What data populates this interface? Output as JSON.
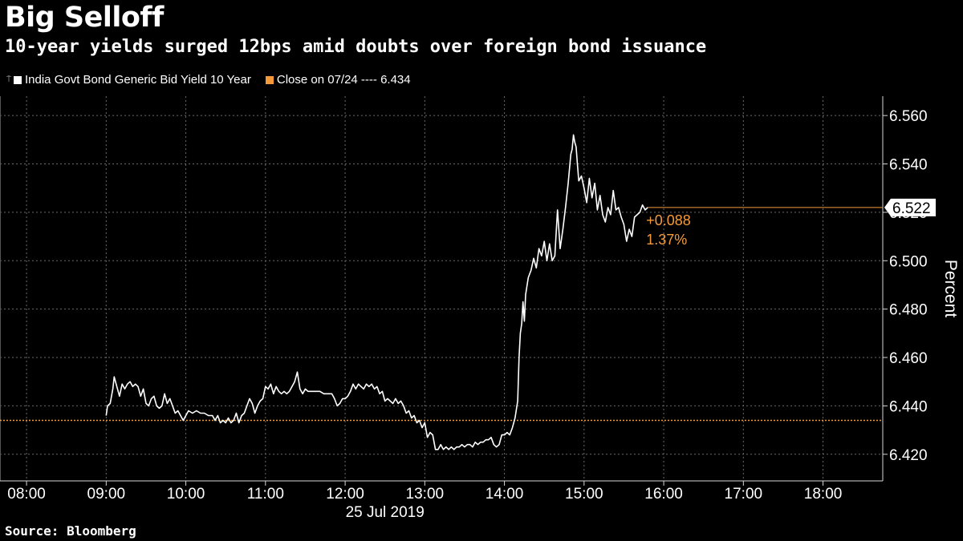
{
  "title": "Big Selloff",
  "subtitle": "10-year yields surged 12bps amid doubts over foreign bond issuance",
  "legend": {
    "series_label": "India Govt Bond Generic Bid Yield 10 Year",
    "close_label": "Close on 07/24 ---- 6.434",
    "series_color": "#ffffff",
    "close_color": "#f59a3a"
  },
  "source": "Source: Bloomberg",
  "chart_data": {
    "type": "line",
    "xlabel": "25 Jul 2019",
    "ylabel": "Percent",
    "x_ticks": [
      "08:00",
      "09:00",
      "10:00",
      "11:00",
      "12:00",
      "13:00",
      "14:00",
      "15:00",
      "16:00",
      "17:00",
      "18:00"
    ],
    "y_ticks": [
      "6.420",
      "6.440",
      "6.460",
      "6.480",
      "6.500",
      "6.520",
      "6.540",
      "6.560"
    ],
    "xlim": [
      "07:40",
      "18:45"
    ],
    "ylim": [
      6.409,
      6.568
    ],
    "grid": true,
    "legend_position": "top-left",
    "reference_line": {
      "label": "Close on 07/24",
      "value": 6.434
    },
    "last_value": "6.522",
    "change": "+0.088",
    "change_pct": "1.37%",
    "series": [
      {
        "name": "India Govt Bond Generic Bid Yield 10 Year",
        "points": [
          [
            "09:00",
            6.436
          ],
          [
            "09:01",
            6.44
          ],
          [
            "09:03",
            6.441
          ],
          [
            "09:05",
            6.447
          ],
          [
            "09:06",
            6.452
          ],
          [
            "09:08",
            6.448
          ],
          [
            "09:10",
            6.444
          ],
          [
            "09:12",
            6.449
          ],
          [
            "09:14",
            6.447
          ],
          [
            "09:16",
            6.449
          ],
          [
            "09:18",
            6.45
          ],
          [
            "09:20",
            6.448
          ],
          [
            "09:22",
            6.449
          ],
          [
            "09:24",
            6.448
          ],
          [
            "09:26",
            6.444
          ],
          [
            "09:28",
            6.447
          ],
          [
            "09:30",
            6.441
          ],
          [
            "09:32",
            6.44
          ],
          [
            "09:34",
            6.443
          ],
          [
            "09:36",
            6.444
          ],
          [
            "09:38",
            6.44
          ],
          [
            "09:40",
            6.439
          ],
          [
            "09:42",
            6.44
          ],
          [
            "09:44",
            6.445
          ],
          [
            "09:46",
            6.441
          ],
          [
            "09:48",
            6.443
          ],
          [
            "09:50",
            6.44
          ],
          [
            "09:52",
            6.437
          ],
          [
            "09:54",
            6.438
          ],
          [
            "09:56",
            6.436
          ],
          [
            "09:58",
            6.434
          ],
          [
            "10:00",
            6.436
          ],
          [
            "10:02",
            6.438
          ],
          [
            "10:05",
            6.437
          ],
          [
            "10:08",
            6.438
          ],
          [
            "10:11",
            6.437
          ],
          [
            "10:14",
            6.437
          ],
          [
            "10:17",
            6.436
          ],
          [
            "10:20",
            6.436
          ],
          [
            "10:22",
            6.434
          ],
          [
            "10:24",
            6.436
          ],
          [
            "10:26",
            6.433
          ],
          [
            "10:28",
            6.434
          ],
          [
            "10:30",
            6.433
          ],
          [
            "10:32",
            6.435
          ],
          [
            "10:34",
            6.433
          ],
          [
            "10:36",
            6.434
          ],
          [
            "10:38",
            6.437
          ],
          [
            "10:40",
            6.433
          ],
          [
            "10:42",
            6.436
          ],
          [
            "10:44",
            6.437
          ],
          [
            "10:46",
            6.44
          ],
          [
            "10:48",
            6.443
          ],
          [
            "10:50",
            6.441
          ],
          [
            "10:52",
            6.437
          ],
          [
            "10:54",
            6.44
          ],
          [
            "10:56",
            6.442
          ],
          [
            "10:58",
            6.443
          ],
          [
            "11:00",
            6.448
          ],
          [
            "11:02",
            6.447
          ],
          [
            "11:04",
            6.449
          ],
          [
            "11:06",
            6.445
          ],
          [
            "11:08",
            6.448
          ],
          [
            "11:10",
            6.446
          ],
          [
            "11:12",
            6.445
          ],
          [
            "11:14",
            6.446
          ],
          [
            "11:16",
            6.445
          ],
          [
            "11:18",
            6.446
          ],
          [
            "11:20",
            6.448
          ],
          [
            "11:22",
            6.45
          ],
          [
            "11:24",
            6.454
          ],
          [
            "11:26",
            6.447
          ],
          [
            "11:28",
            6.445
          ],
          [
            "11:30",
            6.447
          ],
          [
            "11:32",
            6.446
          ],
          [
            "11:35",
            6.446
          ],
          [
            "11:38",
            6.446
          ],
          [
            "11:41",
            6.446
          ],
          [
            "11:44",
            6.445
          ],
          [
            "11:47",
            6.445
          ],
          [
            "11:50",
            6.445
          ],
          [
            "11:52",
            6.443
          ],
          [
            "11:54",
            6.44
          ],
          [
            "11:56",
            6.441
          ],
          [
            "11:58",
            6.443
          ],
          [
            "12:00",
            6.443
          ],
          [
            "12:02",
            6.444
          ],
          [
            "12:04",
            6.446
          ],
          [
            "12:06",
            6.449
          ],
          [
            "12:08",
            6.447
          ],
          [
            "12:10",
            6.449
          ],
          [
            "12:12",
            6.448
          ],
          [
            "12:14",
            6.447
          ],
          [
            "12:16",
            6.449
          ],
          [
            "12:18",
            6.448
          ],
          [
            "12:20",
            6.449
          ],
          [
            "12:22",
            6.447
          ],
          [
            "12:24",
            6.448
          ],
          [
            "12:26",
            6.445
          ],
          [
            "12:28",
            6.446
          ],
          [
            "12:30",
            6.442
          ],
          [
            "12:32",
            6.443
          ],
          [
            "12:34",
            6.442
          ],
          [
            "12:36",
            6.441
          ],
          [
            "12:38",
            6.443
          ],
          [
            "12:40",
            6.441
          ],
          [
            "12:42",
            6.442
          ],
          [
            "12:44",
            6.44
          ],
          [
            "12:46",
            6.437
          ],
          [
            "12:48",
            6.438
          ],
          [
            "12:50",
            6.435
          ],
          [
            "12:52",
            6.436
          ],
          [
            "12:54",
            6.433
          ],
          [
            "12:56",
            6.434
          ],
          [
            "12:58",
            6.431
          ],
          [
            "13:00",
            6.433
          ],
          [
            "13:02",
            6.427
          ],
          [
            "13:04",
            6.429
          ],
          [
            "13:06",
            6.428
          ],
          [
            "13:08",
            6.422
          ],
          [
            "13:10",
            6.422
          ],
          [
            "13:12",
            6.424
          ],
          [
            "13:14",
            6.422
          ],
          [
            "13:16",
            6.423
          ],
          [
            "13:18",
            6.422
          ],
          [
            "13:20",
            6.423
          ],
          [
            "13:22",
            6.422
          ],
          [
            "13:24",
            6.423
          ],
          [
            "13:26",
            6.423
          ],
          [
            "13:28",
            6.424
          ],
          [
            "13:30",
            6.423
          ],
          [
            "13:32",
            6.424
          ],
          [
            "13:34",
            6.424
          ],
          [
            "13:36",
            6.423
          ],
          [
            "13:38",
            6.425
          ],
          [
            "13:40",
            6.424
          ],
          [
            "13:42",
            6.425
          ],
          [
            "13:44",
            6.425
          ],
          [
            "13:46",
            6.426
          ],
          [
            "13:48",
            6.426
          ],
          [
            "13:50",
            6.427
          ],
          [
            "13:52",
            6.424
          ],
          [
            "13:54",
            6.423
          ],
          [
            "13:56",
            6.424
          ],
          [
            "13:58",
            6.428
          ],
          [
            "14:00",
            6.428
          ],
          [
            "14:02",
            6.429
          ],
          [
            "14:04",
            6.428
          ],
          [
            "14:06",
            6.431
          ],
          [
            "14:08",
            6.435
          ],
          [
            "14:10",
            6.442
          ],
          [
            "14:11",
            6.46
          ],
          [
            "14:12",
            6.47
          ],
          [
            "14:13",
            6.474
          ],
          [
            "14:14",
            6.483
          ],
          [
            "14:15",
            6.475
          ],
          [
            "14:16",
            6.486
          ],
          [
            "14:18",
            6.493
          ],
          [
            "14:20",
            6.496
          ],
          [
            "14:22",
            6.501
          ],
          [
            "14:24",
            6.497
          ],
          [
            "14:26",
            6.505
          ],
          [
            "14:28",
            6.502
          ],
          [
            "14:30",
            6.508
          ],
          [
            "14:32",
            6.5
          ],
          [
            "14:34",
            6.507
          ],
          [
            "14:36",
            6.5
          ],
          [
            "14:38",
            6.502
          ],
          [
            "14:40",
            6.521
          ],
          [
            "14:42",
            6.505
          ],
          [
            "14:44",
            6.513
          ],
          [
            "14:46",
            6.522
          ],
          [
            "14:48",
            6.532
          ],
          [
            "14:50",
            6.544
          ],
          [
            "14:51",
            6.546
          ],
          [
            "14:52",
            6.552
          ],
          [
            "14:53",
            6.549
          ],
          [
            "14:54",
            6.547
          ],
          [
            "14:55",
            6.54
          ],
          [
            "14:56",
            6.533
          ],
          [
            "14:58",
            6.535
          ],
          [
            "15:00",
            6.53
          ],
          [
            "15:02",
            6.524
          ],
          [
            "15:04",
            6.534
          ],
          [
            "15:06",
            6.526
          ],
          [
            "15:08",
            6.532
          ],
          [
            "15:10",
            6.521
          ],
          [
            "15:12",
            6.527
          ],
          [
            "15:14",
            6.519
          ],
          [
            "15:16",
            6.516
          ],
          [
            "15:18",
            6.522
          ],
          [
            "15:20",
            6.519
          ],
          [
            "15:22",
            6.529
          ],
          [
            "15:24",
            6.521
          ],
          [
            "15:26",
            6.522
          ],
          [
            "15:28",
            6.518
          ],
          [
            "15:30",
            6.515
          ],
          [
            "15:32",
            6.508
          ],
          [
            "15:34",
            6.513
          ],
          [
            "15:36",
            6.51
          ],
          [
            "15:38",
            6.518
          ],
          [
            "15:40",
            6.519
          ],
          [
            "15:42",
            6.52
          ],
          [
            "15:44",
            6.523
          ],
          [
            "15:46",
            6.521
          ],
          [
            "15:48",
            6.522
          ]
        ]
      }
    ]
  }
}
